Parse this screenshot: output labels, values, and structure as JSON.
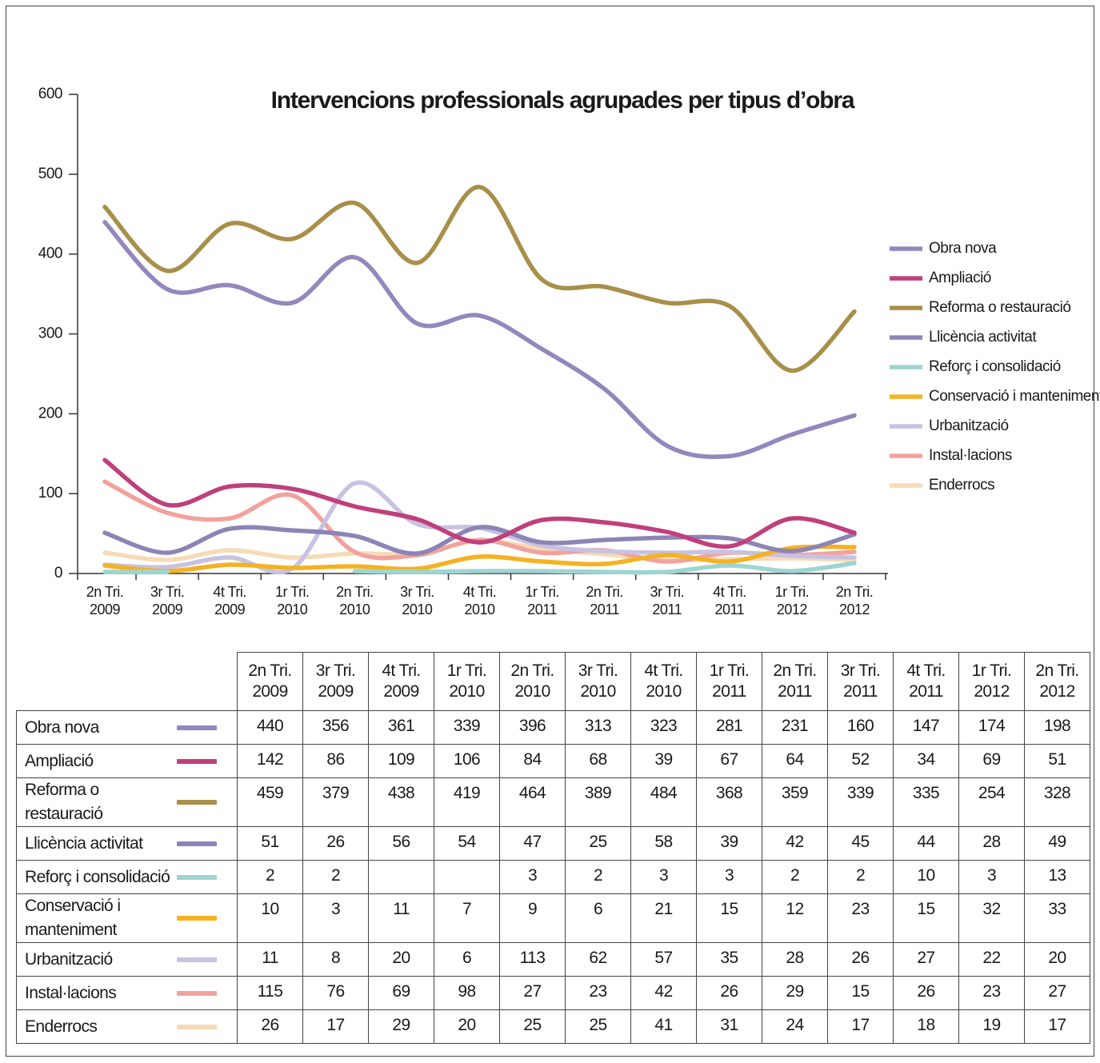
{
  "chart_data": {
    "type": "line",
    "title": "Intervencions professionals agrupades per tipus d’obra",
    "categories": [
      "2n Tri. 2009",
      "3r Tri. 2009",
      "4t Tri. 2009",
      "1r Tri. 2010",
      "2n Tri. 2010",
      "3r Tri. 2010",
      "4t Tri. 2010",
      "1r Tri. 2011",
      "2n Tri. 2011",
      "3r Tri. 2011",
      "4t Tri. 2011",
      "1r Tri. 2012",
      "2n Tri. 2012"
    ],
    "series": [
      {
        "name": "Obra nova",
        "color": "#9387bd",
        "values": [
          440,
          356,
          361,
          339,
          396,
          313,
          323,
          281,
          231,
          160,
          147,
          174,
          198
        ]
      },
      {
        "name": "Ampliació",
        "color": "#c03f7c",
        "values": [
          142,
          86,
          109,
          106,
          84,
          68,
          39,
          67,
          64,
          52,
          34,
          69,
          51
        ]
      },
      {
        "name": "Reforma o restauració",
        "color": "#a88f4a",
        "values": [
          459,
          379,
          438,
          419,
          464,
          389,
          484,
          368,
          359,
          339,
          335,
          254,
          328
        ]
      },
      {
        "name": "Llicència activitat",
        "color": "#8d84b6",
        "values": [
          51,
          26,
          56,
          54,
          47,
          25,
          58,
          39,
          42,
          45,
          44,
          28,
          49
        ]
      },
      {
        "name": "Reforç i consolidació",
        "color": "#9ed5d1",
        "values": [
          2,
          2,
          null,
          null,
          3,
          2,
          3,
          3,
          2,
          2,
          10,
          3,
          13
        ]
      },
      {
        "name": "Conservació i manteniment",
        "color": "#f4b223",
        "values": [
          10,
          3,
          11,
          7,
          9,
          6,
          21,
          15,
          12,
          23,
          15,
          32,
          33
        ]
      },
      {
        "name": "Urbanització",
        "color": "#c8c2e2",
        "values": [
          11,
          8,
          20,
          6,
          113,
          62,
          57,
          35,
          28,
          26,
          27,
          22,
          20
        ]
      },
      {
        "name": "Instal·lacions",
        "color": "#f2a29c",
        "values": [
          115,
          76,
          69,
          98,
          27,
          23,
          42,
          26,
          29,
          15,
          26,
          23,
          27
        ]
      },
      {
        "name": "Enderrocs",
        "color": "#f6dbb6",
        "values": [
          26,
          17,
          29,
          20,
          25,
          25,
          41,
          31,
          24,
          17,
          18,
          19,
          17
        ]
      }
    ],
    "ylim": [
      0,
      600
    ],
    "yticks": [
      0,
      100,
      200,
      300,
      400,
      500,
      600
    ],
    "legend": "right",
    "data_table": true
  }
}
